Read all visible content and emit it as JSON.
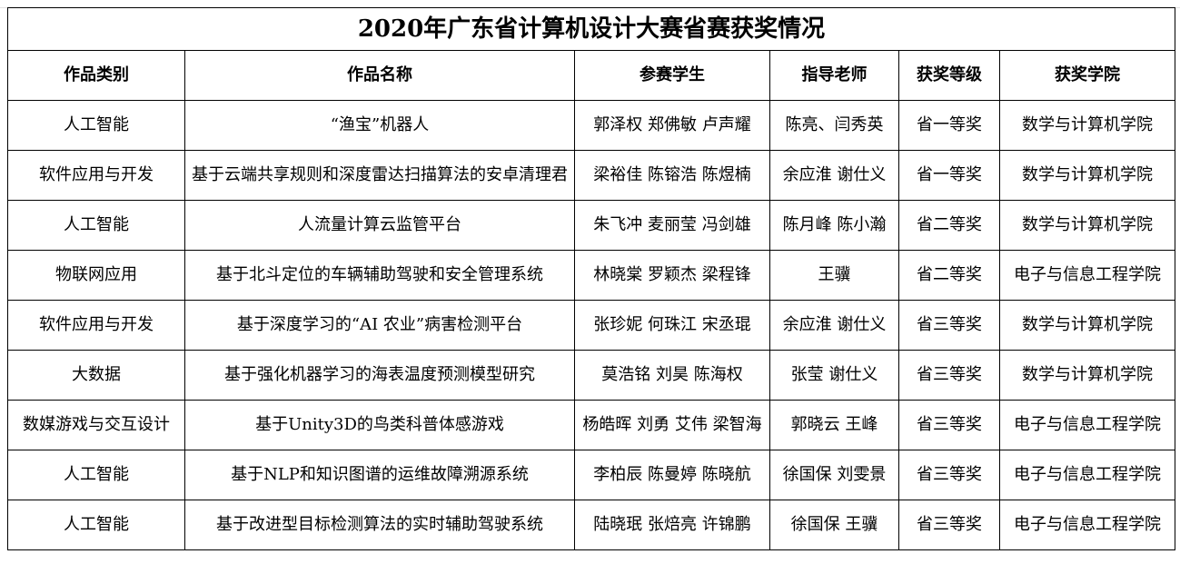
{
  "title": "2020年广东省计算机设计大赛省赛获奖情况",
  "headers": [
    "作品类别",
    "作品名称",
    "参赛学生",
    "指导老师",
    "获奖等级",
    "获奖学院"
  ],
  "rows": [
    [
      "人工智能",
      "“渔宝”机器人",
      "郭泽权 郑佛敏 卢声耀",
      "陈亮、闫秀英",
      "省一等奖",
      "数学与计算机学院"
    ],
    [
      "软件应用与开发",
      "基于云端共享规则和深度雷达扫描算法的安卓清理君",
      "梁裕佳 陈镕浩 陈煜楠",
      "余应淮 谢仕义",
      "省一等奖",
      "数学与计算机学院"
    ],
    [
      "人工智能",
      "人流量计算云监管平台",
      "朱飞冲 麦丽莹 冯剑雄",
      "陈月峰 陈小瀚",
      "省二等奖",
      "数学与计算机学院"
    ],
    [
      "物联网应用",
      "基于北斗定位的车辆辅助驾驶和安全管理系统",
      "林晓棠 罗颖杰 梁程锋",
      "王骥",
      "省二等奖",
      "电子与信息工程学院"
    ],
    [
      "软件应用与开发",
      "基于深度学习的“AI 农业”病害检测平台",
      "张珍妮 何珠江 宋丞琨",
      "余应淮 谢仕义",
      "省三等奖",
      "数学与计算机学院"
    ],
    [
      "大数据",
      "基于强化机器学习的海表温度预测模型研究",
      "莫浩铭 刘昊 陈海权",
      "张莹 谢仕义",
      "省三等奖",
      "数学与计算机学院"
    ],
    [
      "数媒游戏与交互设计",
      "基于Unity3D的鸟类科普体感游戏",
      "杨皓晖 刘勇 艾伟 梁智海",
      "郭晓云 王峰",
      "省三等奖",
      "电子与信息工程学院"
    ],
    [
      "人工智能",
      "基于NLP和知识图谱的运维故障溯源系统",
      "李柏辰 陈曼婷 陈晓航",
      "徐国保 刘雯景",
      "省三等奖",
      "电子与信息工程学院"
    ],
    [
      "人工智能",
      "基于改进型目标检测算法的实时辅助驾驶系统",
      "陆晓珉 张焙亮 许锦鹏",
      "徐国保 王骥",
      "省三等奖",
      "电子与信息工程学院"
    ]
  ]
}
